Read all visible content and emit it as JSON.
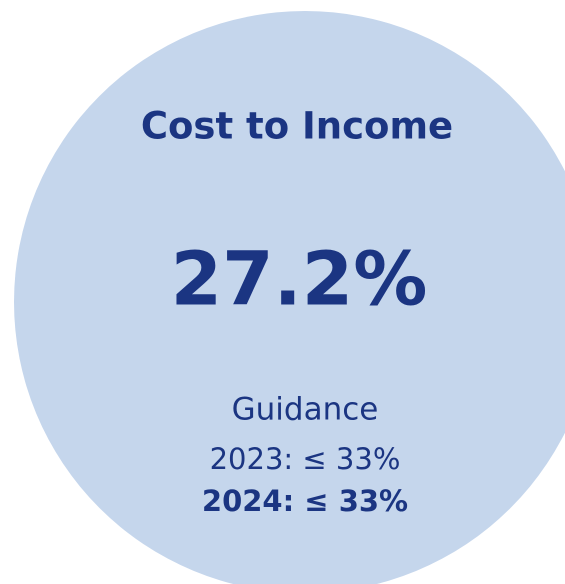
{
  "card": {
    "title": "Cost to Income",
    "value": "27.2%",
    "guidance": {
      "label": "Guidance",
      "lines": [
        "2023: ≤ 33%",
        "2024: ≤ 33%"
      ]
    }
  }
}
